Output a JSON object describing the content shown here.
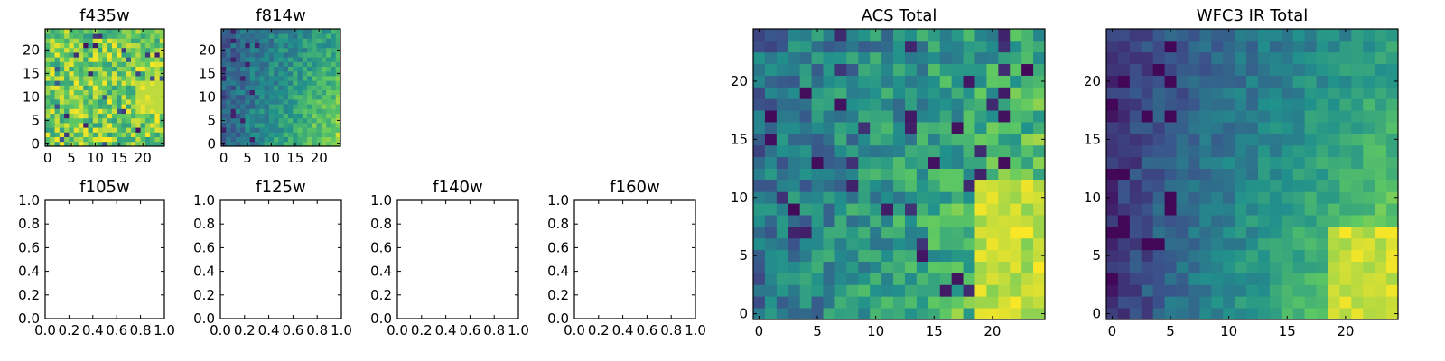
{
  "chart_data": [
    {
      "type": "heatmap",
      "title": "f435w",
      "grid_size": [
        25,
        25
      ],
      "xlim": [
        -0.5,
        24.5
      ],
      "ylim": [
        -0.5,
        24.5
      ],
      "xticks": [
        0,
        5,
        10,
        15,
        20
      ],
      "yticks": [
        0,
        5,
        10,
        15,
        20
      ],
      "colormap": "viridis",
      "pattern": "noisy-bright",
      "description_values": "per-pixel intensity, mostly mid-high (green/yellow) with scattered dark pixels"
    },
    {
      "type": "heatmap",
      "title": "f814w",
      "grid_size": [
        25,
        25
      ],
      "xlim": [
        -0.5,
        24.5
      ],
      "ylim": [
        -0.5,
        24.5
      ],
      "xticks": [
        0,
        5,
        10,
        15,
        20
      ],
      "yticks": [
        0,
        5,
        10,
        15,
        20
      ],
      "colormap": "viridis",
      "pattern": "gradient-lower-right",
      "description_values": "intensity increasing toward lower-right corner"
    },
    {
      "type": "empty",
      "title": "f105w",
      "xlim": [
        0.0,
        1.0
      ],
      "ylim": [
        0.0,
        1.0
      ],
      "xticks": [
        "0.0",
        "0.2",
        "0.4",
        "0.6",
        "0.8",
        "1.0"
      ],
      "yticks": [
        "0.0",
        "0.2",
        "0.4",
        "0.6",
        "0.8",
        "1.0"
      ]
    },
    {
      "type": "empty",
      "title": "f125w",
      "xlim": [
        0.0,
        1.0
      ],
      "ylim": [
        0.0,
        1.0
      ],
      "xticks": [
        "0.0",
        "0.2",
        "0.4",
        "0.6",
        "0.8",
        "1.0"
      ],
      "yticks": [
        "0.0",
        "0.2",
        "0.4",
        "0.6",
        "0.8",
        "1.0"
      ]
    },
    {
      "type": "empty",
      "title": "f140w",
      "xlim": [
        0.0,
        1.0
      ],
      "ylim": [
        0.0,
        1.0
      ],
      "xticks": [
        "0.0",
        "0.2",
        "0.4",
        "0.6",
        "0.8",
        "1.0"
      ],
      "yticks": [
        "0.0",
        "0.2",
        "0.4",
        "0.6",
        "0.8",
        "1.0"
      ]
    },
    {
      "type": "empty",
      "title": "f160w",
      "xlim": [
        0.0,
        1.0
      ],
      "ylim": [
        0.0,
        1.0
      ],
      "xticks": [
        "0.0",
        "0.2",
        "0.4",
        "0.6",
        "0.8",
        "1.0"
      ],
      "yticks": [
        "0.0",
        "0.2",
        "0.4",
        "0.6",
        "0.8",
        "1.0"
      ]
    },
    {
      "type": "heatmap",
      "title": "ACS Total",
      "grid_size": [
        25,
        25
      ],
      "xlim": [
        -0.5,
        24.5
      ],
      "ylim": [
        -0.5,
        24.5
      ],
      "xticks": [
        0,
        5,
        10,
        15,
        20
      ],
      "yticks": [
        0,
        5,
        10,
        15,
        20
      ],
      "colormap": "viridis",
      "pattern": "gradient-lower-right-noisy",
      "description_values": "teal/green field with dark speckles, brightest (yellow) toward lower-right"
    },
    {
      "type": "heatmap",
      "title": "WFC3 IR Total",
      "grid_size": [
        25,
        25
      ],
      "xlim": [
        -0.5,
        24.5
      ],
      "ylim": [
        -0.5,
        24.5
      ],
      "xticks": [
        0,
        5,
        10,
        15,
        20
      ],
      "yticks": [
        0,
        5,
        10,
        15,
        20
      ],
      "colormap": "viridis",
      "pattern": "gradient-lower-right-smooth",
      "description_values": "dark blue left edge, smooth gradient to bright yellow in lower-right"
    }
  ],
  "colors": {
    "viridis_stops": [
      "#440154",
      "#3b528b",
      "#21918c",
      "#5ec962",
      "#fde725"
    ],
    "frame": "#000000",
    "background": "#ffffff"
  }
}
